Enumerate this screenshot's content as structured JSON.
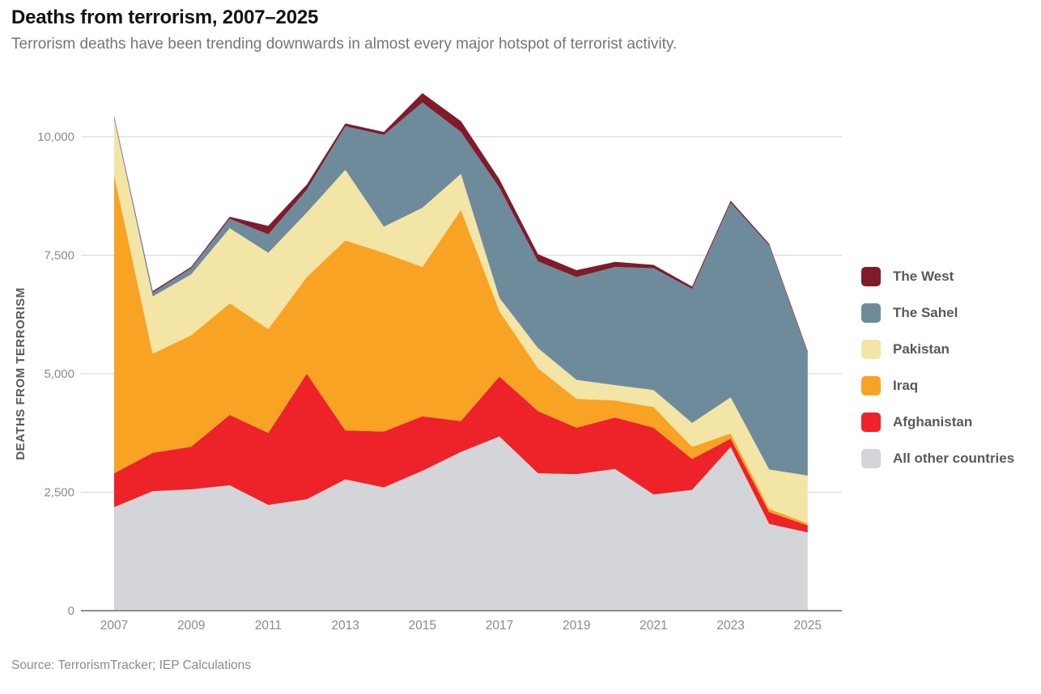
{
  "header": {
    "title": "Deaths from terrorism, 2007–2025",
    "subtitle": "Terrorism deaths have been trending downwards in almost every major hotspot of terrorist activity."
  },
  "source_note": "Source: TerrorismTracker; IEP Calculations",
  "colors": {
    "grid_line": "#DCDCDC",
    "axis_line": "#8E8E8E",
    "tick_text": "#8A8A8A",
    "axis_title_text": "#58595B",
    "title_text": "#121212",
    "subtitle_text": "#757575"
  },
  "chart_data": {
    "type": "area",
    "stacked": true,
    "title": "Deaths from terrorism, 2007–2025",
    "ylabel": "DEATHS FROM TERRORISM",
    "xlabel": "",
    "grid": true,
    "legend_position": "right",
    "ylim": [
      0,
      11000
    ],
    "x": [
      2007,
      2008,
      2009,
      2010,
      2011,
      2012,
      2013,
      2014,
      2015,
      2016,
      2017,
      2018,
      2019,
      2020,
      2021,
      2022,
      2023,
      2024,
      2025
    ],
    "xticks": [
      2007,
      2009,
      2011,
      2013,
      2015,
      2017,
      2019,
      2021,
      2023,
      2025
    ],
    "xtick_labels": [
      "2007",
      "2009",
      "2011",
      "2013",
      "2015",
      "2017",
      "2019",
      "2021",
      "2023",
      "2025"
    ],
    "yticks": [
      0,
      2500,
      5000,
      7500,
      10000
    ],
    "ytick_labels": [
      "0",
      "2,500",
      "5,000",
      "7,500",
      "10,000"
    ],
    "series": [
      {
        "name": "All other countries",
        "color": "#D3D5D8",
        "values": [
          2185,
          2520,
          2560,
          2645,
          2230,
          2350,
          2770,
          2600,
          2950,
          3350,
          3675,
          2900,
          2880,
          2990,
          2450,
          2550,
          3450,
          1830,
          1650
        ]
      },
      {
        "name": "Afghanistan",
        "color": "#ED2329",
        "values": [
          715,
          810,
          900,
          1485,
          1520,
          2650,
          1030,
          1180,
          1150,
          650,
          1265,
          1310,
          980,
          1085,
          1410,
          650,
          180,
          250,
          150
        ]
      },
      {
        "name": "Iraq",
        "color": "#F9A324",
        "values": [
          6295,
          2090,
          2350,
          2355,
          2190,
          2040,
          4010,
          3770,
          3150,
          4450,
          1375,
          905,
          610,
          360,
          435,
          255,
          110,
          70,
          40
        ]
      },
      {
        "name": "Pakistan",
        "color": "#F3E5A5",
        "values": [
          1175,
          1210,
          1285,
          1585,
          1610,
          1360,
          1490,
          550,
          1250,
          765,
          285,
          425,
          400,
          325,
          360,
          505,
          760,
          830,
          1010
        ]
      },
      {
        "name": "The Sahel",
        "color": "#6E8B9C",
        "values": [
          50,
          80,
          130,
          200,
          390,
          480,
          920,
          1940,
          2220,
          885,
          2320,
          1830,
          2170,
          2490,
          2570,
          2830,
          4110,
          4730,
          2590
        ]
      },
      {
        "name": "The West",
        "color": "#801B2A",
        "values": [
          20,
          30,
          30,
          40,
          180,
          110,
          60,
          60,
          200,
          230,
          180,
          150,
          145,
          110,
          70,
          50,
          40,
          30,
          30
        ]
      }
    ],
    "totals": [
      10440,
      6740,
      7255,
      8310,
      8120,
      8990,
      10280,
      10100,
      10920,
      10330,
      9100,
      7520,
      7185,
      7360,
      7295,
      6840,
      8650,
      7740,
      5470
    ]
  }
}
